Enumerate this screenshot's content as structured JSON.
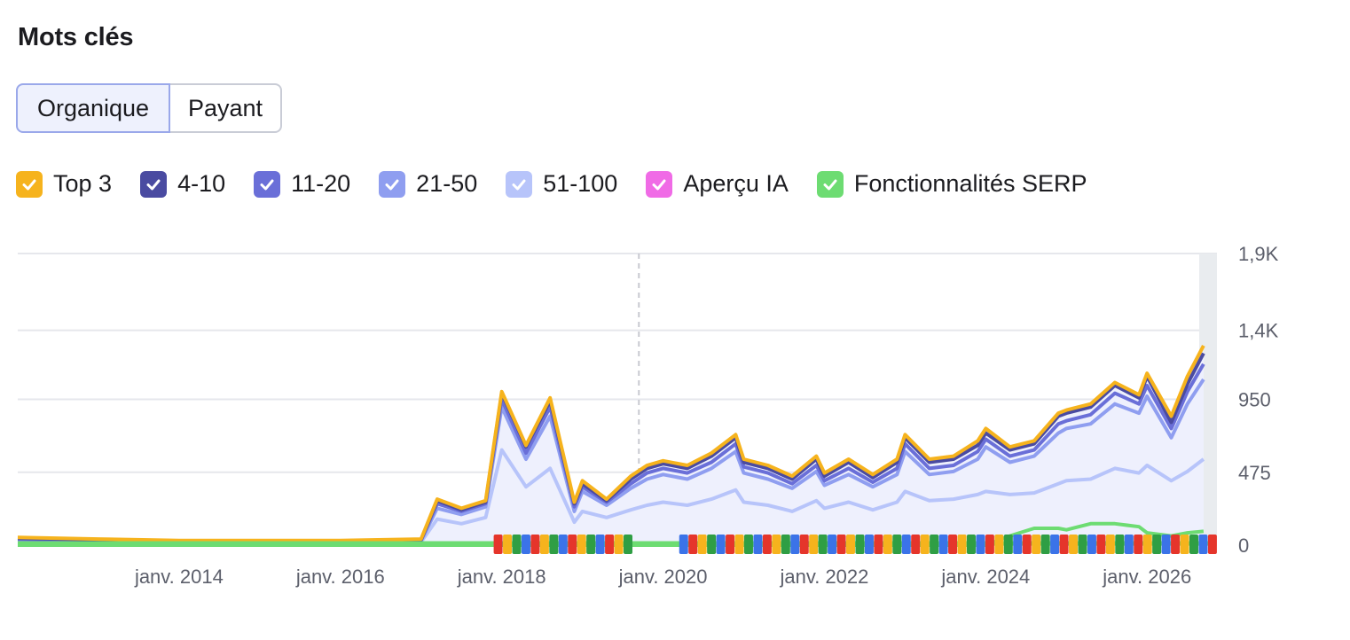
{
  "title": "Mots clés",
  "tabs": [
    {
      "label": "Organique",
      "active": true
    },
    {
      "label": "Payant",
      "active": false
    }
  ],
  "legend": [
    {
      "label": "Top 3",
      "color": "#f6b31d",
      "icon": "check-icon"
    },
    {
      "label": "4-10",
      "color": "#4a4ba1",
      "icon": "check-icon"
    },
    {
      "label": "11-20",
      "color": "#6a6fd8",
      "icon": "check-icon"
    },
    {
      "label": "21-50",
      "color": "#8f9ef0",
      "icon": "check-icon"
    },
    {
      "label": "51-100",
      "color": "#b7c4fa",
      "icon": "check-icon"
    },
    {
      "label": "Aperçu IA",
      "color": "#f06be6",
      "icon": "check-icon"
    },
    {
      "label": "Fonctionnalités SERP",
      "color": "#6ddc72",
      "icon": "check-icon"
    }
  ],
  "chart_data": {
    "type": "area",
    "ylim": [
      0,
      1900
    ],
    "yticks": [
      0,
      475,
      950,
      1400,
      1900
    ],
    "ytick_labels": [
      "0",
      "475",
      "950",
      "1,4K",
      "1,9K"
    ],
    "xtick_values": [
      2014,
      2016,
      2018,
      2020,
      2022,
      2024,
      2026
    ],
    "xtick_labels": [
      "janv. 2014",
      "janv. 2016",
      "janv. 2018",
      "janv. 2020",
      "janv. 2022",
      "janv. 2024",
      "janv. 2026"
    ],
    "xlim": [
      2012.0,
      2026.8
    ],
    "grid": true,
    "x": [
      2012.0,
      2013.0,
      2014.0,
      2015.0,
      2016.0,
      2017.0,
      2017.2,
      2017.5,
      2017.8,
      2018.0,
      2018.3,
      2018.6,
      2018.9,
      2019.0,
      2019.3,
      2019.6,
      2019.8,
      2020.0,
      2020.3,
      2020.6,
      2020.9,
      2021.0,
      2021.3,
      2021.6,
      2021.9,
      2022.0,
      2022.3,
      2022.6,
      2022.9,
      2023.0,
      2023.3,
      2023.6,
      2023.9,
      2024.0,
      2024.3,
      2024.6,
      2024.9,
      2025.0,
      2025.3,
      2025.6,
      2025.9,
      2026.0,
      2026.3,
      2026.5,
      2026.7
    ],
    "series": [
      {
        "name": "Top 3",
        "color": "#f6b31d",
        "values": [
          50,
          40,
          30,
          30,
          30,
          40,
          300,
          240,
          290,
          1000,
          650,
          960,
          280,
          420,
          300,
          450,
          520,
          550,
          520,
          600,
          720,
          560,
          520,
          450,
          580,
          470,
          560,
          460,
          560,
          720,
          560,
          580,
          680,
          760,
          640,
          680,
          860,
          880,
          920,
          1060,
          980,
          1120,
          840,
          1100,
          1300
        ]
      },
      {
        "name": "4-10",
        "color": "#4a4ba1",
        "values": [
          45,
          35,
          25,
          25,
          25,
          35,
          290,
          230,
          280,
          990,
          640,
          940,
          270,
          400,
          290,
          430,
          500,
          530,
          500,
          580,
          700,
          540,
          500,
          430,
          560,
          450,
          540,
          440,
          540,
          700,
          540,
          560,
          650,
          730,
          620,
          660,
          840,
          860,
          900,
          1040,
          960,
          1100,
          800,
          1050,
          1250
        ]
      },
      {
        "name": "11-20",
        "color": "#6a6fd8",
        "values": [
          40,
          32,
          22,
          22,
          22,
          32,
          270,
          220,
          270,
          950,
          600,
          900,
          250,
          380,
          280,
          400,
          470,
          500,
          470,
          540,
          660,
          510,
          470,
          400,
          520,
          420,
          500,
          410,
          500,
          660,
          500,
          520,
          610,
          690,
          580,
          620,
          790,
          810,
          850,
          990,
          920,
          1040,
          760,
          1000,
          1180
        ]
      },
      {
        "name": "21-50",
        "color": "#8f9ef0",
        "values": [
          35,
          28,
          18,
          18,
          18,
          28,
          240,
          200,
          250,
          900,
          560,
          840,
          220,
          350,
          260,
          370,
          430,
          460,
          430,
          500,
          610,
          470,
          430,
          370,
          480,
          390,
          460,
          380,
          460,
          610,
          460,
          480,
          560,
          640,
          540,
          580,
          730,
          760,
          790,
          920,
          860,
          970,
          700,
          920,
          1080
        ]
      },
      {
        "name": "51-100",
        "color": "#b7c4fa",
        "values": [
          25,
          20,
          12,
          12,
          12,
          20,
          170,
          140,
          180,
          620,
          380,
          500,
          150,
          220,
          180,
          230,
          260,
          280,
          260,
          300,
          360,
          280,
          260,
          220,
          290,
          240,
          280,
          230,
          280,
          350,
          290,
          300,
          330,
          350,
          330,
          340,
          400,
          420,
          430,
          500,
          470,
          520,
          420,
          480,
          560
        ]
      },
      {
        "name": "Fonctionnalités SERP",
        "color": "#6ddc72",
        "values": [
          0,
          0,
          0,
          0,
          0,
          0,
          0,
          0,
          0,
          0,
          0,
          0,
          0,
          0,
          0,
          0,
          0,
          0,
          0,
          0,
          0,
          0,
          0,
          0,
          0,
          0,
          0,
          0,
          0,
          0,
          0,
          0,
          0,
          0,
          60,
          110,
          110,
          100,
          140,
          140,
          120,
          80,
          60,
          80,
          90
        ]
      }
    ],
    "marker_band": {
      "start": 2017.9,
      "end": 2026.8,
      "gaps": [
        [
          2019.6,
          2020.1
        ]
      ]
    }
  }
}
